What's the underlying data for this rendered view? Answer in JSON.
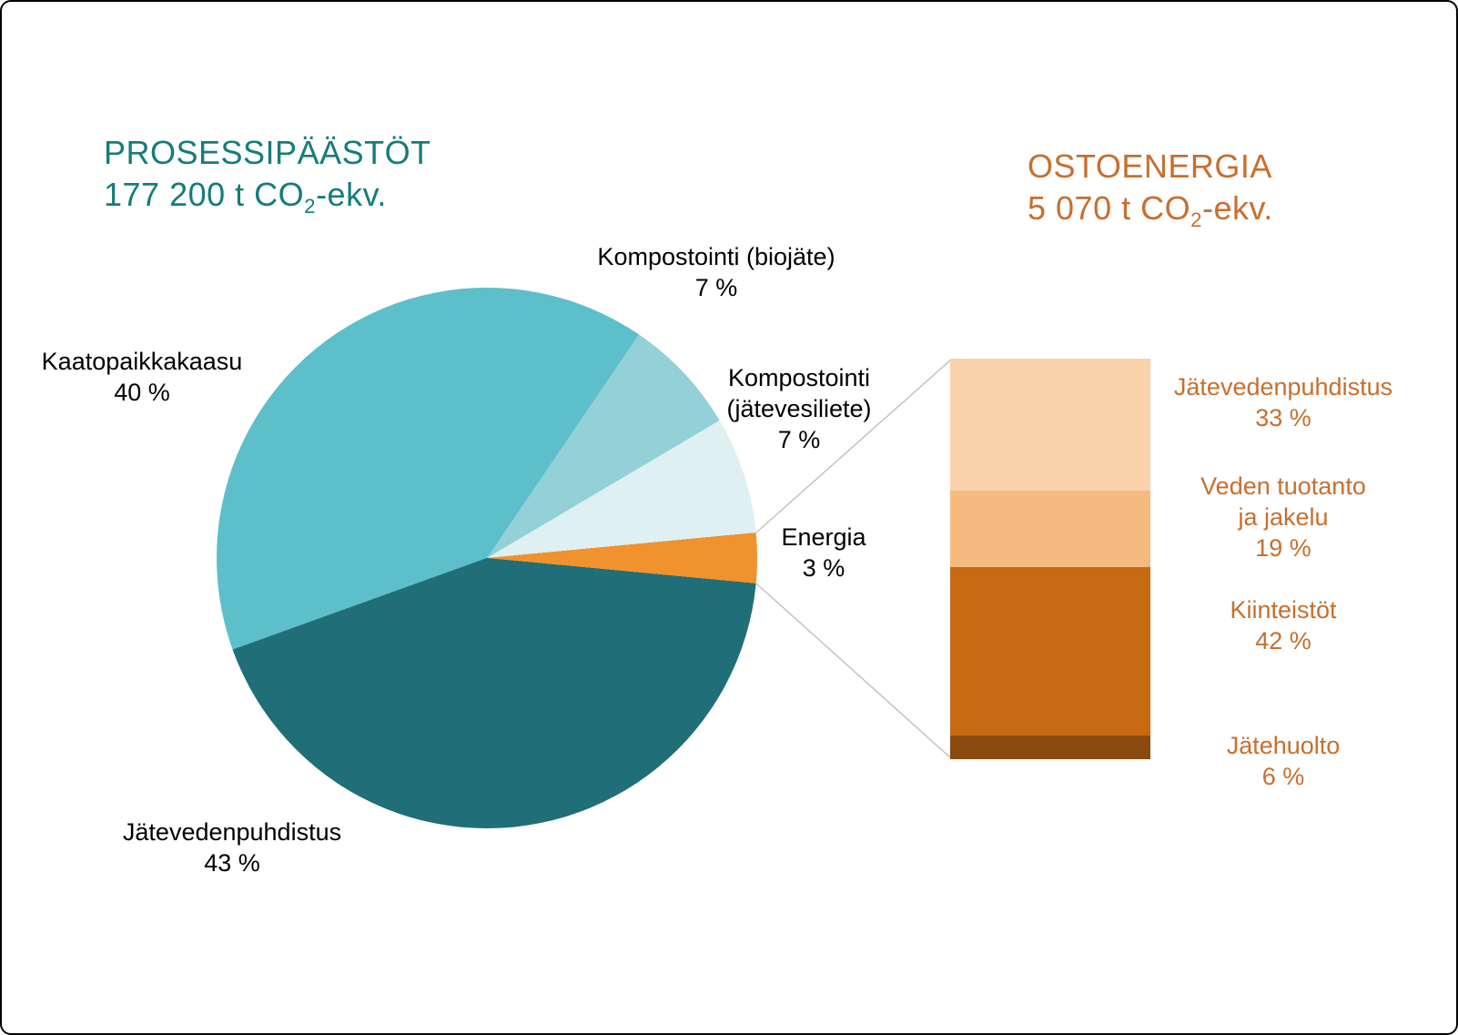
{
  "colors": {
    "teal_accent": "#147D7A",
    "orange_accent": "#C76F2E",
    "label_black": "#000000",
    "connector_gray": "#C2C2C2",
    "background": "#FFFFFF"
  },
  "chart_data": [
    {
      "type": "pie",
      "title": "PROSESSIPÄÄSTÖT",
      "total_prefix": "177 200 t CO",
      "total_sub": "2",
      "total_suffix": "-ekv.",
      "start_angle_deg": 250.2,
      "legend_position": "outside-callouts",
      "slices": [
        {
          "label": "Kaatopaikkakaasu",
          "pct": 40,
          "pct_label": "40 %",
          "color": "#5DBFCA"
        },
        {
          "label": "Kompostointi (biojäte)",
          "pct": 7,
          "pct_label": "7 %",
          "color": "#93D0D8"
        },
        {
          "label": "Kompostointi (jätevesiliete)",
          "label_lines": [
            "Kompostointi",
            "(jätevesiliete)"
          ],
          "pct": 7,
          "pct_label": "7 %",
          "color": "#DEF0F2"
        },
        {
          "label": "Energia",
          "pct": 3,
          "pct_label": "3 %",
          "color": "#F0922D"
        },
        {
          "label": "Jätevedenpuhdistus",
          "pct": 43,
          "pct_label": "43 %",
          "color": "#206E78"
        }
      ]
    },
    {
      "type": "stacked-bar",
      "title": "OSTOENERGIA",
      "total_prefix": "5 070 t CO",
      "total_sub": "2",
      "total_suffix": "-ekv.",
      "segments": [
        {
          "label": "Jätevedenpuhdistus",
          "pct": 33,
          "pct_label": "33 %",
          "color": "#F8D3AC"
        },
        {
          "label": "Veden tuotanto ja jakelu",
          "label_lines": [
            "Veden tuotanto",
            "ja jakelu"
          ],
          "pct": 19,
          "pct_label": "19 %",
          "color": "#F6BA80"
        },
        {
          "label": "Kiinteistöt",
          "pct": 42,
          "pct_label": "42 %",
          "color": "#C86A12"
        },
        {
          "label": "Jätehuolto",
          "pct": 6,
          "pct_label": "6 %",
          "color": "#8B4A10"
        }
      ]
    }
  ]
}
